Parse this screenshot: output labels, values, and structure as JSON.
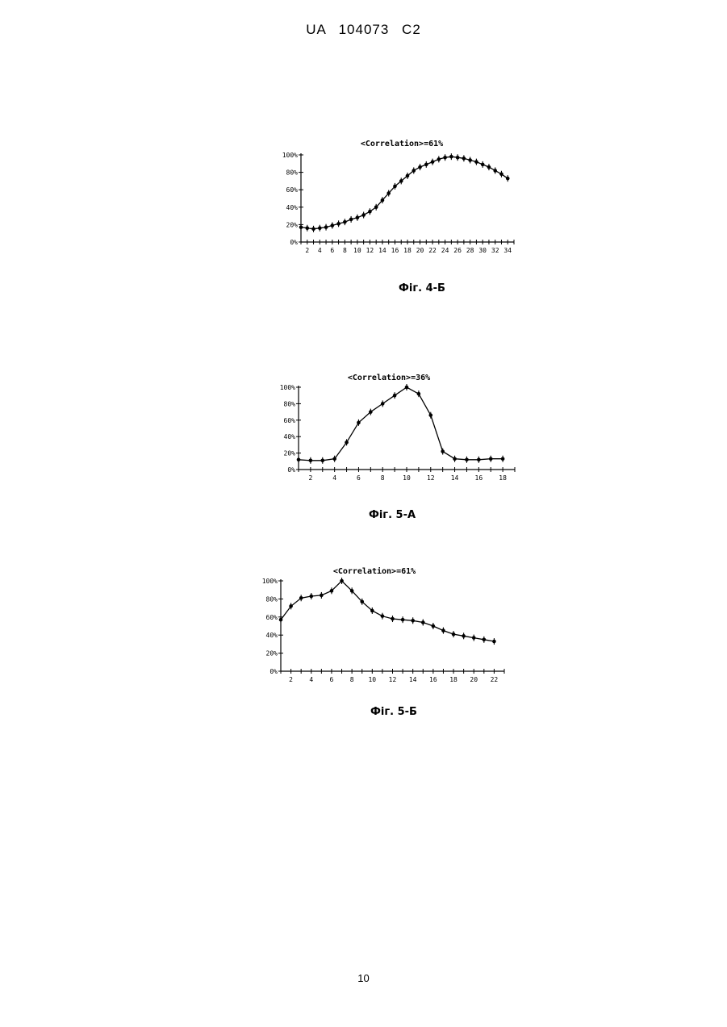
{
  "header": {
    "text": "UA   104073   C2"
  },
  "page_number": "10",
  "chart_data": [
    {
      "type": "line",
      "title": "<Correlation>=61%",
      "caption": "Фіг. 4-Б",
      "xlabel": "",
      "ylabel": "",
      "x_ticks": [
        "2",
        "4",
        "6",
        "8",
        "10",
        "12",
        "14",
        "16",
        "18",
        "20",
        "22",
        "24",
        "26",
        "28",
        "30",
        "32",
        "34"
      ],
      "y_ticks": [
        "0%",
        "20%",
        "40%",
        "60%",
        "80%",
        "100%"
      ],
      "xlim": [
        1,
        35
      ],
      "ylim": [
        0,
        100
      ],
      "grid": false,
      "series": [
        {
          "x": [
            1,
            2,
            3,
            4,
            5,
            6,
            7,
            8,
            9,
            10,
            11,
            12,
            13,
            14,
            15,
            16,
            17,
            18,
            19,
            20,
            21,
            22,
            23,
            24,
            25,
            26,
            27,
            28,
            29,
            30,
            31,
            32,
            33,
            34
          ],
          "values": [
            17,
            16,
            15,
            16,
            17,
            19,
            21,
            23,
            26,
            28,
            31,
            35,
            40,
            48,
            56,
            64,
            70,
            76,
            82,
            86,
            89,
            92,
            95,
            97,
            98,
            97,
            96,
            94,
            92,
            89,
            86,
            82,
            78,
            73
          ]
        }
      ]
    },
    {
      "type": "line",
      "title": "<Correlation>=36%",
      "caption": "Фіг. 5-А",
      "xlabel": "",
      "ylabel": "",
      "x_ticks": [
        "2",
        "4",
        "6",
        "8",
        "10",
        "12",
        "14",
        "16",
        "18"
      ],
      "y_ticks": [
        "0%",
        "20%",
        "40%",
        "60%",
        "80%",
        "100%"
      ],
      "xlim": [
        1,
        19
      ],
      "ylim": [
        0,
        100
      ],
      "grid": false,
      "series": [
        {
          "x": [
            1,
            2,
            3,
            4,
            5,
            6,
            7,
            8,
            9,
            10,
            11,
            12,
            13,
            14,
            15,
            16,
            17,
            18
          ],
          "values": [
            12,
            11,
            11,
            13,
            33,
            57,
            70,
            80,
            90,
            100,
            92,
            66,
            22,
            13,
            12,
            12,
            13,
            13
          ]
        }
      ]
    },
    {
      "type": "line",
      "title": "<Correlation>=61%",
      "caption": "Фіг. 5-Б",
      "xlabel": "",
      "ylabel": "",
      "x_ticks": [
        "2",
        "4",
        "6",
        "8",
        "10",
        "12",
        "14",
        "16",
        "18",
        "20",
        "22"
      ],
      "y_ticks": [
        "0%",
        "20%",
        "40%",
        "60%",
        "80%",
        "100%"
      ],
      "xlim": [
        1,
        23
      ],
      "ylim": [
        0,
        100
      ],
      "grid": false,
      "series": [
        {
          "x": [
            1,
            2,
            3,
            4,
            5,
            6,
            7,
            8,
            9,
            10,
            11,
            12,
            13,
            14,
            15,
            16,
            17,
            18,
            19,
            20,
            21,
            22
          ],
          "values": [
            57,
            72,
            81,
            83,
            84,
            89,
            100,
            89,
            77,
            67,
            61,
            58,
            57,
            56,
            54,
            50,
            45,
            41,
            39,
            37,
            35,
            33
          ]
        }
      ]
    }
  ]
}
